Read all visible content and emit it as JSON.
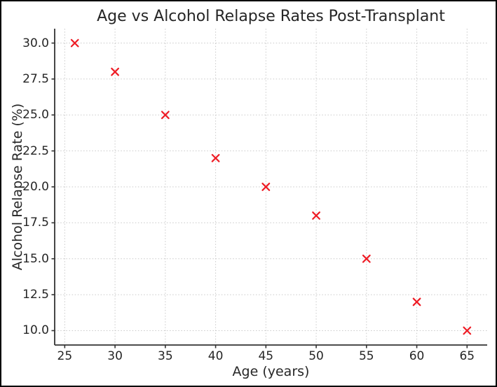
{
  "figure": {
    "background": "#ffffff",
    "border_color": "#000000"
  },
  "chart_data": {
    "type": "scatter",
    "title": "Age vs Alcohol Relapse Rates Post-Transplant",
    "xlabel": "Age (years)",
    "ylabel": "Alcohol Relapse Rate (%)",
    "x": [
      26,
      30,
      35,
      40,
      45,
      50,
      55,
      60,
      65
    ],
    "y": [
      30,
      28,
      25,
      22,
      20,
      18,
      15,
      12,
      10
    ],
    "xlim": [
      24,
      67
    ],
    "ylim": [
      9,
      31
    ],
    "xticks": [
      25,
      30,
      35,
      40,
      45,
      50,
      55,
      60,
      65
    ],
    "xtick_labels": [
      "25",
      "30",
      "35",
      "40",
      "45",
      "50",
      "55",
      "60",
      "65"
    ],
    "yticks": [
      10.0,
      12.5,
      15.0,
      17.5,
      20.0,
      22.5,
      25.0,
      27.5,
      30.0
    ],
    "ytick_labels": [
      "10.0",
      "12.5",
      "15.0",
      "17.5",
      "20.0",
      "22.5",
      "25.0",
      "27.5",
      "30.0"
    ],
    "grid": true,
    "grid_style": "dotted",
    "legend": "none",
    "marker": "x",
    "marker_color": "#ee1c25",
    "grid_color": "#c9c9c9",
    "spine_color": "#333333",
    "text_color": "#262626"
  }
}
